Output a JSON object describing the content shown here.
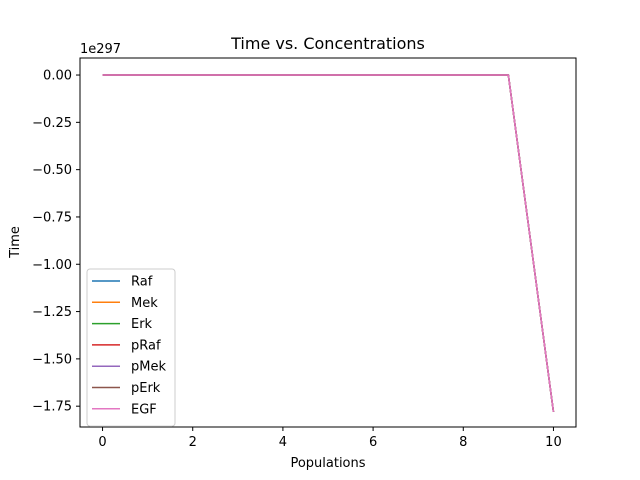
{
  "chart_data": {
    "type": "line",
    "title": "Time vs. Concentrations",
    "xlabel": "Populations",
    "ylabel": "Time",
    "y_offset_text": "1e297",
    "xlim": [
      -0.5,
      10.5
    ],
    "ylim": [
      -1.86,
      0.09
    ],
    "x_ticks": [
      0,
      2,
      4,
      6,
      8,
      10
    ],
    "x_tick_labels": [
      "0",
      "2",
      "4",
      "6",
      "8",
      "10"
    ],
    "y_ticks": [
      0,
      -0.25,
      -0.5,
      -0.75,
      -1.0,
      -1.25,
      -1.5,
      -1.75
    ],
    "y_tick_labels": [
      "0.00",
      "−0.25",
      "−0.50",
      "−0.75",
      "−1.00",
      "−1.25",
      "−1.50",
      "−1.75"
    ],
    "grid": false,
    "legend_position": "lower-left",
    "x": [
      0,
      1,
      2,
      3,
      4,
      5,
      6,
      7,
      8,
      9,
      10
    ],
    "series": [
      {
        "name": "Raf",
        "color": "#1f77b4",
        "values": [
          0,
          0,
          0,
          0,
          0,
          0,
          0,
          0,
          0,
          0,
          -1.78
        ]
      },
      {
        "name": "Mek",
        "color": "#ff7f0e",
        "values": [
          0,
          0,
          0,
          0,
          0,
          0,
          0,
          0,
          0,
          0,
          -1.78
        ]
      },
      {
        "name": "Erk",
        "color": "#2ca02c",
        "values": [
          0,
          0,
          0,
          0,
          0,
          0,
          0,
          0,
          0,
          0,
          -1.78
        ]
      },
      {
        "name": "pRaf",
        "color": "#d62728",
        "values": [
          0,
          0,
          0,
          0,
          0,
          0,
          0,
          0,
          0,
          0,
          -1.78
        ]
      },
      {
        "name": "pMek",
        "color": "#9467bd",
        "values": [
          0,
          0,
          0,
          0,
          0,
          0,
          0,
          0,
          0,
          0,
          -1.78
        ]
      },
      {
        "name": "pErk",
        "color": "#8c564b",
        "values": [
          0,
          0,
          0,
          0,
          0,
          0,
          0,
          0,
          0,
          0,
          -1.78
        ]
      },
      {
        "name": "EGF",
        "color": "#e377c2",
        "values": [
          0,
          0,
          0,
          0,
          0,
          0,
          0,
          0,
          0,
          0,
          -1.78
        ]
      }
    ]
  }
}
